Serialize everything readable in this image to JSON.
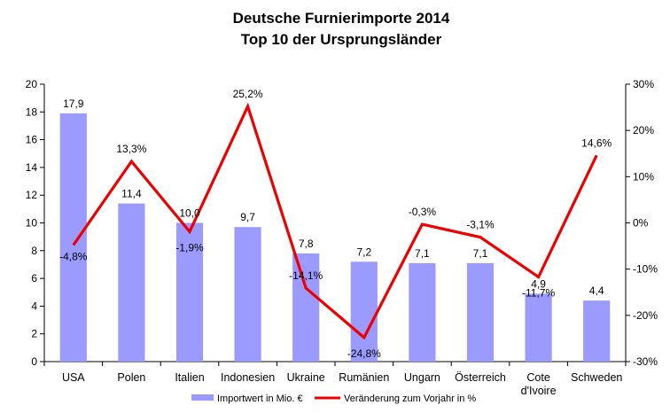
{
  "chart_data": {
    "type": "bar+line",
    "title": "Deutsche Furnierimporte 2014",
    "subtitle": "Top 10 der Ursprungsländer",
    "categories": [
      [
        "USA"
      ],
      [
        "Polen"
      ],
      [
        "Italien"
      ],
      [
        "Indonesien"
      ],
      [
        "Ukraine"
      ],
      [
        "Rumänien"
      ],
      [
        "Ungarn"
      ],
      [
        "Österreich"
      ],
      [
        "Cote",
        "d'Ivoire"
      ],
      [
        "Schweden"
      ]
    ],
    "series": [
      {
        "name": "Importwert in Mio. €",
        "type": "bar",
        "axis": "left",
        "color": "#9a9aff",
        "values": [
          17.9,
          11.4,
          10.0,
          9.7,
          7.8,
          7.2,
          7.1,
          7.1,
          4.9,
          4.4
        ],
        "labels": [
          "17,9",
          "11,4",
          "10,0",
          "9,7",
          "7,8",
          "7,2",
          "7,1",
          "7,1",
          "4,9",
          "4,4"
        ]
      },
      {
        "name": "Veränderung zum Vorjahr in %",
        "type": "line",
        "axis": "right",
        "color": "#ee0000",
        "values": [
          -4.8,
          13.3,
          -1.9,
          25.2,
          -14.1,
          -24.8,
          -0.3,
          -3.1,
          -11.7,
          14.6
        ],
        "labels": [
          "-4,8%",
          "13,3%",
          "-1,9%",
          "25,2%",
          "-14,1%",
          "-24,8%",
          "-0,3%",
          "-3,1%",
          "-11,7%",
          "14,6%"
        ]
      }
    ],
    "y_left": {
      "lim": [
        0,
        20
      ],
      "ticks": [
        0,
        2,
        4,
        6,
        8,
        10,
        12,
        14,
        16,
        18,
        20
      ],
      "tick_labels": [
        "0",
        "2",
        "4",
        "6",
        "8",
        "10",
        "12",
        "14",
        "16",
        "18",
        "20"
      ]
    },
    "y_right": {
      "lim": [
        -30,
        30
      ],
      "ticks": [
        -30,
        -20,
        -10,
        0,
        10,
        20,
        30
      ],
      "tick_labels": [
        "-30%",
        "-20%",
        "-10%",
        "0%",
        "10%",
        "20%",
        "30%"
      ]
    },
    "grid": false,
    "legend": "bottom"
  }
}
